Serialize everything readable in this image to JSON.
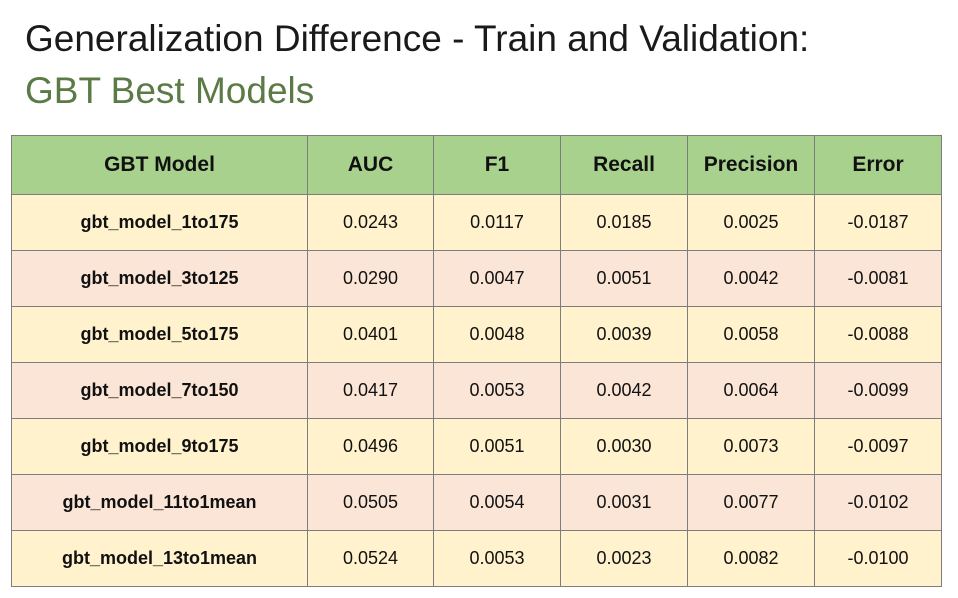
{
  "title": {
    "line1": "Generalization Difference - Train and Validation:",
    "line2": "GBT Best Models"
  },
  "colors": {
    "header_bg": "#a9d18e",
    "row_odd_bg": "#fff2cc",
    "row_even_bg": "#fbe5d6",
    "subtitle_color": "#5b7a45"
  },
  "table": {
    "headers": [
      "GBT Model",
      "AUC",
      "F1",
      "Recall",
      "Precision",
      "Error"
    ],
    "rows": [
      [
        "gbt_model_1to175",
        "0.0243",
        "0.0117",
        "0.0185",
        "0.0025",
        "-0.0187"
      ],
      [
        "gbt_model_3to125",
        "0.0290",
        "0.0047",
        "0.0051",
        "0.0042",
        "-0.0081"
      ],
      [
        "gbt_model_5to175",
        "0.0401",
        "0.0048",
        "0.0039",
        "0.0058",
        "-0.0088"
      ],
      [
        "gbt_model_7to150",
        "0.0417",
        "0.0053",
        "0.0042",
        "0.0064",
        "-0.0099"
      ],
      [
        "gbt_model_9to175",
        "0.0496",
        "0.0051",
        "0.0030",
        "0.0073",
        "-0.0097"
      ],
      [
        "gbt_model_11to1mean",
        "0.0505",
        "0.0054",
        "0.0031",
        "0.0077",
        "-0.0102"
      ],
      [
        "gbt_model_13to1mean",
        "0.0524",
        "0.0053",
        "0.0023",
        "0.0082",
        "-0.0100"
      ]
    ]
  }
}
